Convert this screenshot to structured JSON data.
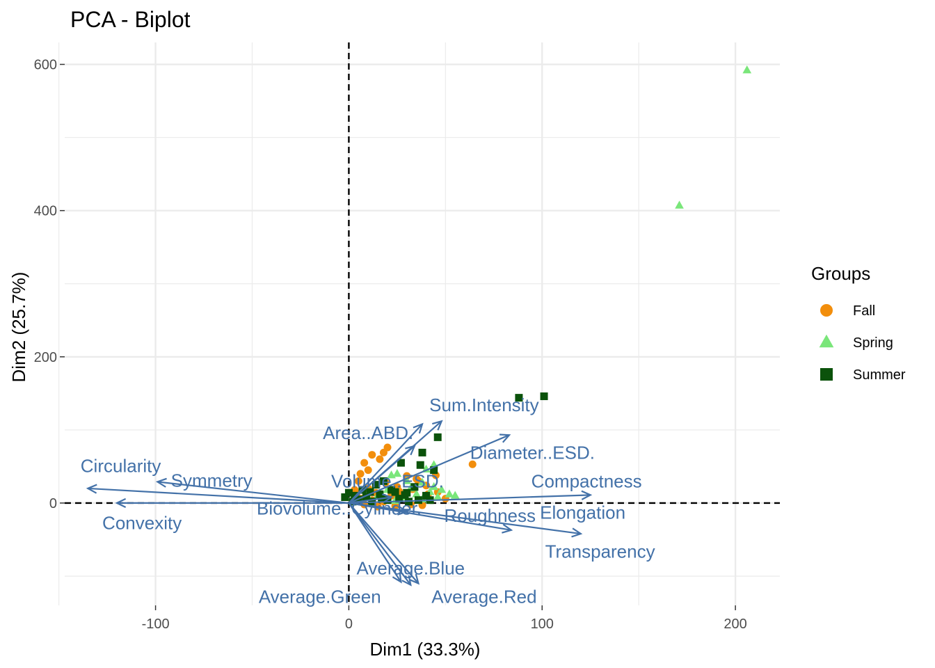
{
  "chart_data": {
    "type": "scatter",
    "title": "PCA - Biplot",
    "xlabel": "Dim1 (33.3%)",
    "ylabel": "Dim2 (25.7%)",
    "xlim": [
      -147,
      223
    ],
    "ylim": [
      -140,
      630
    ],
    "x_ticks": [
      -100,
      0,
      100,
      200
    ],
    "x_tick_labels": [
      "-100",
      "0",
      "100",
      "200"
    ],
    "y_ticks": [
      0,
      200,
      400,
      600
    ],
    "y_tick_labels": [
      "0",
      "200",
      "400",
      "600"
    ],
    "x_minor_grid": [
      -150,
      -50,
      50,
      150
    ],
    "y_minor_grid": [
      -100,
      100,
      300,
      500
    ],
    "grid": true,
    "legend": {
      "title": "Groups",
      "placement": "right",
      "entries": [
        {
          "name": "Fall",
          "color": "#f28e0c",
          "shape": "circle"
        },
        {
          "name": "Spring",
          "color": "#7ae67a",
          "shape": "triangle"
        },
        {
          "name": "Summer",
          "color": "#0b520b",
          "shape": "square"
        }
      ]
    },
    "arrow_color": "#4371a8",
    "series": [
      {
        "name": "Fall",
        "color": "#f28e0c",
        "shape": "circle",
        "points": [
          [
            64,
            53
          ],
          [
            20,
            76
          ],
          [
            18,
            69
          ],
          [
            12,
            66
          ],
          [
            16,
            60
          ],
          [
            8,
            55
          ],
          [
            10,
            45
          ],
          [
            6,
            40
          ],
          [
            30,
            37
          ],
          [
            35,
            33
          ],
          [
            36,
            30
          ],
          [
            45,
            38
          ],
          [
            40,
            24
          ],
          [
            25,
            22
          ],
          [
            5,
            30
          ],
          [
            3,
            18
          ],
          [
            14,
            14
          ],
          [
            22,
            10
          ],
          [
            28,
            9
          ],
          [
            50,
            6
          ],
          [
            12,
            4
          ],
          [
            18,
            2
          ],
          [
            8,
            -2
          ],
          [
            24,
            -4
          ],
          [
            32,
            -2
          ],
          [
            38,
            -3
          ],
          [
            15,
            -5
          ],
          [
            4,
            12
          ],
          [
            10,
            20
          ],
          [
            26,
            16
          ],
          [
            19,
            28
          ],
          [
            33,
            19
          ],
          [
            41,
            12
          ],
          [
            46,
            15
          ],
          [
            7,
            6
          ]
        ]
      },
      {
        "name": "Spring",
        "color": "#7ae67a",
        "shape": "triangle",
        "points": [
          [
            206,
            592
          ],
          [
            171,
            407
          ],
          [
            44,
            52
          ],
          [
            40,
            46
          ],
          [
            22,
            38
          ],
          [
            25,
            40
          ],
          [
            30,
            30
          ],
          [
            38,
            28
          ],
          [
            44,
            22
          ],
          [
            48,
            18
          ],
          [
            52,
            12
          ],
          [
            55,
            10
          ],
          [
            42,
            15
          ],
          [
            35,
            12
          ],
          [
            28,
            8
          ],
          [
            15,
            10
          ],
          [
            20,
            18
          ],
          [
            32,
            20
          ],
          [
            46,
            8
          ],
          [
            38,
            5
          ],
          [
            24,
            3
          ],
          [
            10,
            8
          ]
        ]
      },
      {
        "name": "Summer",
        "color": "#0b520b",
        "shape": "square",
        "points": [
          [
            101,
            146
          ],
          [
            88,
            144
          ],
          [
            38,
            69
          ],
          [
            46,
            90
          ],
          [
            27,
            55
          ],
          [
            44,
            45
          ],
          [
            37,
            52
          ],
          [
            18,
            30
          ],
          [
            14,
            25
          ],
          [
            22,
            18
          ],
          [
            30,
            14
          ],
          [
            34,
            22
          ],
          [
            16,
            12
          ],
          [
            9,
            8
          ],
          [
            26,
            6
          ],
          [
            20,
            4
          ],
          [
            12,
            2
          ],
          [
            5,
            5
          ],
          [
            -2,
            8
          ],
          [
            0,
            14
          ],
          [
            3,
            10
          ],
          [
            40,
            10
          ],
          [
            36,
            4
          ],
          [
            29,
            11
          ],
          [
            24,
            15
          ],
          [
            17,
            7
          ],
          [
            11,
            15
          ],
          [
            7,
            18
          ],
          [
            31,
            2
          ],
          [
            42,
            4
          ],
          [
            2,
            2
          ]
        ]
      }
    ],
    "variables": [
      {
        "name": "Sum.Intensity",
        "x": 48,
        "y": 112,
        "label_x": 70,
        "label_y": 134
      },
      {
        "name": "Area..ABD.",
        "x": 38,
        "y": 108,
        "label_x": 10,
        "label_y": 96
      },
      {
        "name": "Diameter..ESD.",
        "x": 83,
        "y": 93,
        "label_x": 95,
        "label_y": 69
      },
      {
        "name": "Volume..ESD.",
        "x": 34,
        "y": 78,
        "label_x": 20,
        "label_y": 30
      },
      {
        "name": "Compactness",
        "x": 125,
        "y": 11,
        "label_x": 123,
        "label_y": 30
      },
      {
        "name": "Elongation",
        "x": 120,
        "y": -42,
        "label_x": 121,
        "label_y": -13
      },
      {
        "name": "Transparency",
        "x": 84,
        "y": -37,
        "label_x": 130,
        "label_y": -66
      },
      {
        "name": "Roughness",
        "x": 30,
        "y": -12,
        "label_x": 73,
        "label_y": -17
      },
      {
        "name": "Biovolume..Cylinder.",
        "x": 22,
        "y": 8,
        "label_x": -5,
        "label_y": -7
      },
      {
        "name": "Average.Blue",
        "x": 36,
        "y": -110,
        "label_x": 32,
        "label_y": -89
      },
      {
        "name": "Average.Green",
        "x": 27,
        "y": -108,
        "label_x": -15,
        "label_y": -128
      },
      {
        "name": "Average.Red",
        "x": 32,
        "y": -112,
        "label_x": 70,
        "label_y": -128
      },
      {
        "name": "Circularity",
        "x": -135,
        "y": 20,
        "label_x": -118,
        "label_y": 51
      },
      {
        "name": "Symmetry",
        "x": -99,
        "y": 29,
        "label_x": -71,
        "label_y": 31
      },
      {
        "name": "Convexity",
        "x": -120,
        "y": 0,
        "label_x": -107,
        "label_y": -27
      }
    ]
  }
}
